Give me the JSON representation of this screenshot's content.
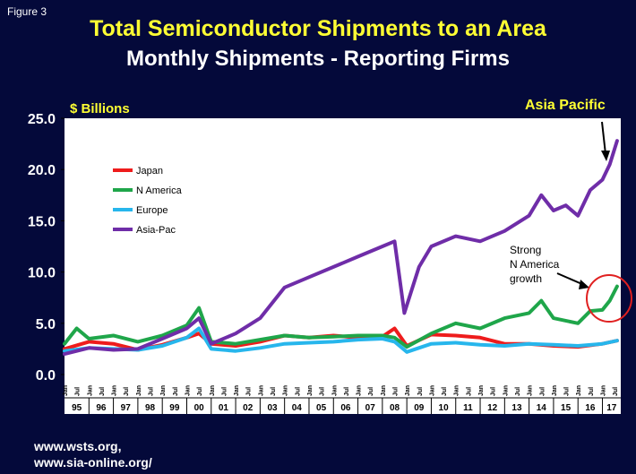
{
  "figure_label": "Figure 3",
  "sources": [
    "www.wsts.org,",
    "www.sia-online.org/"
  ],
  "chart_data": {
    "type": "line",
    "title": "Total Semiconductor Shipments to an Area",
    "subtitle": "Monthly Shipments - Reporting Firms",
    "ylabel": "$ Billions",
    "ylim": [
      0,
      25
    ],
    "yticks": [
      "0.0",
      "5.0",
      "10.0",
      "15.0",
      "20.0",
      "25.0"
    ],
    "x_years": [
      "95",
      "96",
      "97",
      "98",
      "99",
      "00",
      "01",
      "02",
      "03",
      "04",
      "05",
      "06",
      "07",
      "08",
      "09",
      "10",
      "11",
      "12",
      "13",
      "14",
      "15",
      "16",
      "17"
    ],
    "x_month_labels": [
      "Jan",
      "Jul"
    ],
    "x_start": 1995.0,
    "x_end": 2017.75,
    "grid": false,
    "legend_position": "upper-left",
    "annotations": [
      {
        "text": "Asia Pacific",
        "color": "#ffff33"
      },
      {
        "text": "Strong",
        "color": "#ffffff"
      },
      {
        "text": "N America",
        "color": "#ffffff"
      },
      {
        "text": "growth",
        "color": "#ffffff"
      }
    ],
    "series": [
      {
        "name": "Japan",
        "color": "#ee1c1c",
        "x": [
          1995.0,
          1996.0,
          1997.0,
          1998.0,
          1999.0,
          2000.0,
          2000.5,
          2001.0,
          2002.0,
          2003.0,
          2004.0,
          2005.0,
          2006.0,
          2007.0,
          2008.0,
          2008.5,
          2009.0,
          2010.0,
          2011.0,
          2012.0,
          2013.0,
          2014.0,
          2015.0,
          2016.0,
          2017.0,
          2017.6
        ],
        "values": [
          2.5,
          3.2,
          3.0,
          2.4,
          2.9,
          3.6,
          4.0,
          3.0,
          2.8,
          3.2,
          3.8,
          3.6,
          3.8,
          3.6,
          3.7,
          4.5,
          2.8,
          3.9,
          3.8,
          3.6,
          3.0,
          3.0,
          2.8,
          2.7,
          3.0,
          3.3
        ]
      },
      {
        "name": "N America",
        "color": "#1fa64a",
        "x": [
          1995.0,
          1995.5,
          1996.0,
          1997.0,
          1998.0,
          1999.0,
          2000.0,
          2000.5,
          2001.0,
          2002.0,
          2003.0,
          2004.0,
          2005.0,
          2006.0,
          2007.0,
          2008.0,
          2008.5,
          2009.0,
          2010.0,
          2011.0,
          2012.0,
          2013.0,
          2014.0,
          2014.5,
          2015.0,
          2016.0,
          2016.5,
          2017.0,
          2017.3,
          2017.6
        ],
        "values": [
          3.0,
          4.5,
          3.5,
          3.8,
          3.2,
          3.8,
          4.8,
          6.5,
          3.2,
          3.0,
          3.4,
          3.8,
          3.6,
          3.7,
          3.8,
          3.8,
          3.6,
          2.7,
          4.0,
          5.0,
          4.5,
          5.5,
          6.0,
          7.2,
          5.5,
          5.0,
          6.2,
          6.3,
          7.2,
          8.6
        ]
      },
      {
        "name": "Europe",
        "color": "#27b6ec",
        "x": [
          1995.0,
          1996.0,
          1997.0,
          1998.0,
          1999.0,
          2000.0,
          2000.5,
          2001.0,
          2002.0,
          2003.0,
          2004.0,
          2005.0,
          2006.0,
          2007.0,
          2008.0,
          2008.5,
          2009.0,
          2010.0,
          2011.0,
          2012.0,
          2013.0,
          2014.0,
          2015.0,
          2016.0,
          2017.0,
          2017.6
        ],
        "values": [
          2.3,
          2.6,
          2.5,
          2.4,
          2.8,
          3.6,
          4.5,
          2.5,
          2.3,
          2.6,
          3.0,
          3.1,
          3.2,
          3.4,
          3.5,
          3.2,
          2.2,
          3.0,
          3.1,
          2.9,
          2.8,
          3.0,
          2.9,
          2.8,
          3.0,
          3.3
        ]
      },
      {
        "name": "Asia-Pac",
        "color": "#6f2da8",
        "x": [
          1995.0,
          1996.0,
          1997.0,
          1998.0,
          1999.0,
          2000.0,
          2000.5,
          2001.0,
          2002.0,
          2003.0,
          2004.0,
          2005.0,
          2006.0,
          2007.0,
          2008.0,
          2008.5,
          2008.9,
          2009.5,
          2010.0,
          2011.0,
          2012.0,
          2013.0,
          2014.0,
          2014.5,
          2015.0,
          2015.5,
          2016.0,
          2016.5,
          2017.0,
          2017.3,
          2017.6
        ],
        "values": [
          2.0,
          2.6,
          2.4,
          2.5,
          3.5,
          4.5,
          5.5,
          3.0,
          4.0,
          5.5,
          8.5,
          9.5,
          10.5,
          11.5,
          12.5,
          13.0,
          6.0,
          10.5,
          12.5,
          13.5,
          13.0,
          14.0,
          15.5,
          17.5,
          16.0,
          16.5,
          15.5,
          18.0,
          19.0,
          20.5,
          22.8
        ]
      }
    ]
  }
}
